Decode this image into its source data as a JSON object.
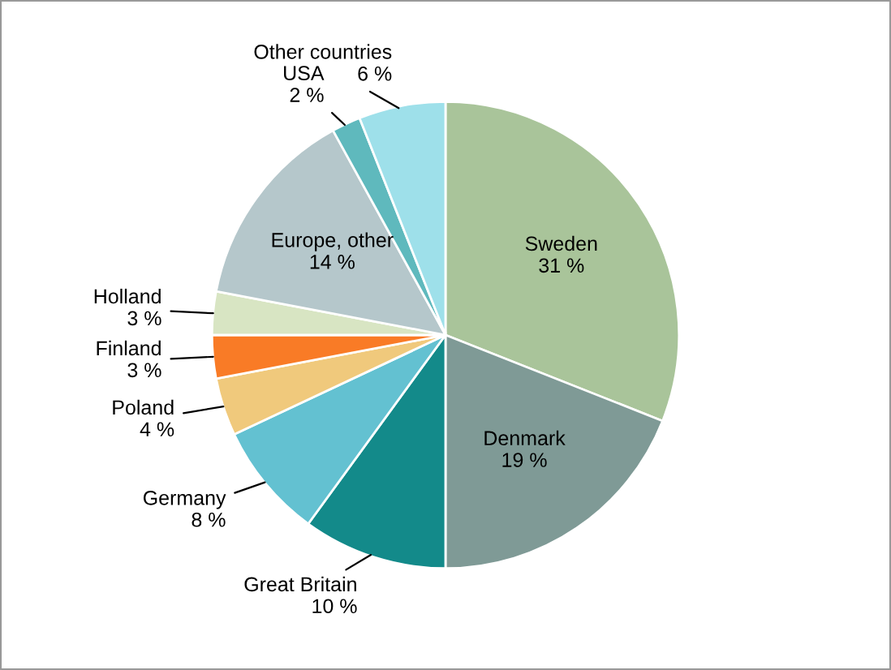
{
  "chart_data": {
    "type": "pie",
    "categories": [
      "Sweden",
      "Denmark",
      "Great Britain",
      "Germany",
      "Poland",
      "Finland",
      "Holland",
      "Europe, other",
      "USA",
      "Other countries"
    ],
    "values": [
      31,
      19,
      10,
      8,
      4,
      3,
      3,
      14,
      2,
      6
    ],
    "value_labels": [
      "31 %",
      "19 %",
      "10 %",
      "8 %",
      "4 %",
      "3 %",
      "3 %",
      "14 %",
      "2 %",
      "6 %"
    ],
    "colors": [
      "#a9c49a",
      "#7f9a96",
      "#138a8a",
      "#63c1d1",
      "#f0c97c",
      "#f97b26",
      "#d8e5c3",
      "#b5c7cb",
      "#5fb9bd",
      "#9ee0ea"
    ],
    "legend": false
  }
}
